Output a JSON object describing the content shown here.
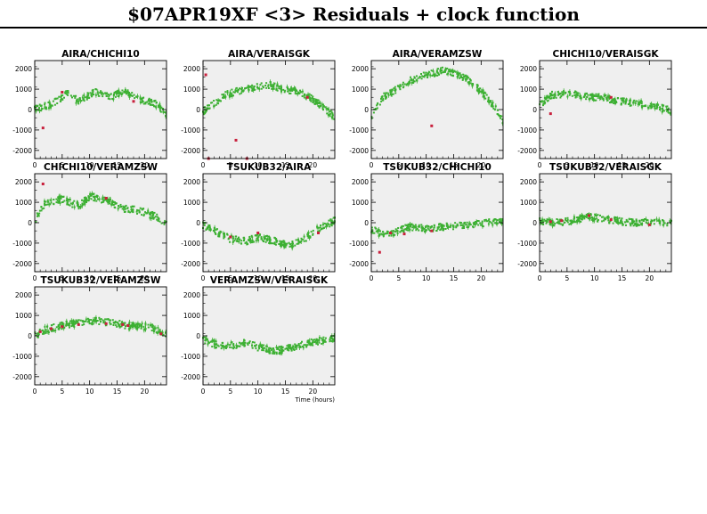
{
  "title": "$07APR19XF <3> Residuals + clock function",
  "x_axis_label": "Time (hours)",
  "colors": {
    "data": "#3cb032",
    "flagged": "#c8203c",
    "panel_bg": "#efefef",
    "frame": "#000000"
  },
  "chart_data": [
    {
      "type": "scatter",
      "title": "AIRA/CHICHI10",
      "xlim": [
        0,
        24
      ],
      "ylim": [
        -2400,
        2400
      ],
      "xticks": [
        0,
        5,
        10,
        15,
        20
      ],
      "yticks": [
        -2000,
        -1000,
        0,
        1000,
        2000
      ],
      "trend": [
        [
          0,
          0
        ],
        [
          3,
          250
        ],
        [
          6,
          800
        ],
        [
          8,
          400
        ],
        [
          11,
          900
        ],
        [
          14,
          600
        ],
        [
          16,
          900
        ],
        [
          19,
          500
        ],
        [
          22,
          300
        ],
        [
          24,
          -200
        ]
      ],
      "outliers": [
        [
          1.5,
          -900
        ],
        [
          5,
          850
        ],
        [
          18,
          400
        ]
      ]
    },
    {
      "type": "scatter",
      "title": "AIRA/VERAISGK",
      "xlim": [
        0,
        24
      ],
      "ylim": [
        -2400,
        2400
      ],
      "xticks": [
        0,
        5,
        10,
        15,
        20
      ],
      "yticks": [
        -2000,
        -1000,
        0,
        1000,
        2000
      ],
      "trend": [
        [
          0,
          -100
        ],
        [
          2,
          300
        ],
        [
          4,
          700
        ],
        [
          6,
          900
        ],
        [
          8,
          1000
        ],
        [
          10,
          1100
        ],
        [
          12,
          1200
        ],
        [
          15,
          1000
        ],
        [
          18,
          800
        ],
        [
          20,
          500
        ],
        [
          22,
          100
        ],
        [
          24,
          -400
        ]
      ],
      "outliers": [
        [
          0.5,
          1700
        ],
        [
          1,
          -2400
        ],
        [
          6,
          -1500
        ],
        [
          8,
          -2400
        ],
        [
          19,
          600
        ]
      ]
    },
    {
      "type": "scatter",
      "title": "AIRA/VERAMZSW",
      "xlim": [
        0,
        24
      ],
      "ylim": [
        -2400,
        2400
      ],
      "xticks": [
        0,
        5,
        10,
        15,
        20
      ],
      "yticks": [
        -2000,
        -1000,
        0,
        1000,
        2000
      ],
      "trend": [
        [
          0,
          -400
        ],
        [
          2,
          600
        ],
        [
          4,
          900
        ],
        [
          7,
          1400
        ],
        [
          10,
          1700
        ],
        [
          13,
          1900
        ],
        [
          15,
          1800
        ],
        [
          18,
          1400
        ],
        [
          20,
          900
        ],
        [
          22,
          300
        ],
        [
          24,
          -600
        ]
      ],
      "outliers": [
        [
          11,
          -800
        ]
      ]
    },
    {
      "type": "scatter",
      "title": "CHICHI10/VERAISGK",
      "xlim": [
        0,
        24
      ],
      "ylim": [
        -2400,
        2400
      ],
      "xticks": [
        0,
        5,
        10,
        15,
        20
      ],
      "yticks": [
        -2000,
        -1000,
        0,
        1000,
        2000
      ],
      "trend": [
        [
          0,
          200
        ],
        [
          2,
          700
        ],
        [
          5,
          800
        ],
        [
          9,
          650
        ],
        [
          12,
          550
        ],
        [
          15,
          400
        ],
        [
          18,
          300
        ],
        [
          21,
          150
        ],
        [
          24,
          -50
        ]
      ],
      "outliers": [
        [
          13,
          600
        ],
        [
          2,
          -200
        ]
      ]
    },
    {
      "type": "scatter",
      "title": "CHICHI10/VERAMZSW",
      "xlim": [
        0,
        24
      ],
      "ylim": [
        -2400,
        2400
      ],
      "xticks": [
        0,
        5,
        10,
        15,
        20
      ],
      "yticks": [
        -2000,
        -1000,
        0,
        1000,
        2000
      ],
      "trend": [
        [
          0,
          100
        ],
        [
          2,
          1000
        ],
        [
          5,
          1150
        ],
        [
          8,
          800
        ],
        [
          10,
          1300
        ],
        [
          13,
          1100
        ],
        [
          16,
          700
        ],
        [
          19,
          600
        ],
        [
          22,
          300
        ],
        [
          24,
          0
        ]
      ],
      "outliers": [
        [
          1.5,
          1900
        ],
        [
          13,
          1200
        ]
      ]
    },
    {
      "type": "scatter",
      "title": "TSUKUB32/AIRA",
      "xlim": [
        0,
        24
      ],
      "ylim": [
        -2400,
        2400
      ],
      "xticks": [
        0,
        5,
        10,
        15,
        20
      ],
      "yticks": [
        -2000,
        -1000,
        0,
        1000,
        2000
      ],
      "trend": [
        [
          0,
          -100
        ],
        [
          2,
          -400
        ],
        [
          5,
          -800
        ],
        [
          8,
          -900
        ],
        [
          10,
          -700
        ],
        [
          13,
          -900
        ],
        [
          16,
          -1100
        ],
        [
          19,
          -700
        ],
        [
          21,
          -300
        ],
        [
          24,
          100
        ]
      ],
      "outliers": [
        [
          5,
          -700
        ],
        [
          10,
          -500
        ],
        [
          21,
          -500
        ]
      ]
    },
    {
      "type": "scatter",
      "title": "TSUKUB32/CHICHI10",
      "xlim": [
        0,
        24
      ],
      "ylim": [
        -2400,
        2400
      ],
      "xticks": [
        0,
        5,
        10,
        15,
        20
      ],
      "yticks": [
        -2000,
        -1000,
        0,
        1000,
        2000
      ],
      "trend": [
        [
          0,
          -300
        ],
        [
          2,
          -600
        ],
        [
          4,
          -500
        ],
        [
          7,
          -200
        ],
        [
          10,
          -300
        ],
        [
          13,
          -200
        ],
        [
          16,
          -150
        ],
        [
          20,
          -50
        ],
        [
          24,
          100
        ]
      ],
      "outliers": [
        [
          1.5,
          -1450
        ],
        [
          3.5,
          -500
        ],
        [
          6,
          -550
        ],
        [
          11,
          -400
        ]
      ]
    },
    {
      "type": "scatter",
      "title": "TSUKUB32/VERAISGK",
      "xlim": [
        0,
        24
      ],
      "ylim": [
        -2400,
        2400
      ],
      "xticks": [
        0,
        5,
        10,
        15,
        20
      ],
      "yticks": [
        -2000,
        -1000,
        0,
        1000,
        2000
      ],
      "trend": [
        [
          0,
          50
        ],
        [
          3,
          0
        ],
        [
          6,
          100
        ],
        [
          9,
          300
        ],
        [
          11,
          200
        ],
        [
          14,
          100
        ],
        [
          17,
          0
        ],
        [
          20,
          50
        ],
        [
          24,
          0
        ]
      ],
      "outliers": [
        [
          2,
          50
        ],
        [
          4,
          100
        ],
        [
          9,
          350
        ],
        [
          13,
          150
        ],
        [
          20,
          -100
        ]
      ]
    },
    {
      "type": "scatter",
      "title": "TSUKUB32/VERAMZSW",
      "xlim": [
        0,
        24
      ],
      "ylim": [
        -2400,
        2400
      ],
      "xticks": [
        0,
        5,
        10,
        15,
        20
      ],
      "yticks": [
        -2000,
        -1000,
        0,
        1000,
        2000
      ],
      "trend": [
        [
          0,
          0
        ],
        [
          2,
          300
        ],
        [
          5,
          500
        ],
        [
          8,
          650
        ],
        [
          11,
          750
        ],
        [
          14,
          650
        ],
        [
          17,
          500
        ],
        [
          20,
          450
        ],
        [
          22,
          350
        ],
        [
          24,
          0
        ]
      ],
      "outliers": [
        [
          1,
          200
        ],
        [
          3,
          350
        ],
        [
          5,
          450
        ],
        [
          8,
          550
        ],
        [
          13,
          600
        ],
        [
          16,
          550
        ],
        [
          17,
          500
        ],
        [
          23,
          100
        ]
      ]
    },
    {
      "type": "scatter",
      "title": "VERAMZSW/VERAISGK",
      "xlim": [
        0,
        24
      ],
      "ylim": [
        -2400,
        2400
      ],
      "xticks": [
        0,
        5,
        10,
        15,
        20
      ],
      "yticks": [
        -2000,
        -1000,
        0,
        1000,
        2000
      ],
      "trend": [
        [
          0,
          -200
        ],
        [
          3,
          -500
        ],
        [
          6,
          -450
        ],
        [
          8,
          -300
        ],
        [
          10,
          -550
        ],
        [
          13,
          -750
        ],
        [
          16,
          -600
        ],
        [
          20,
          -300
        ],
        [
          24,
          -100
        ]
      ],
      "outliers": []
    }
  ]
}
